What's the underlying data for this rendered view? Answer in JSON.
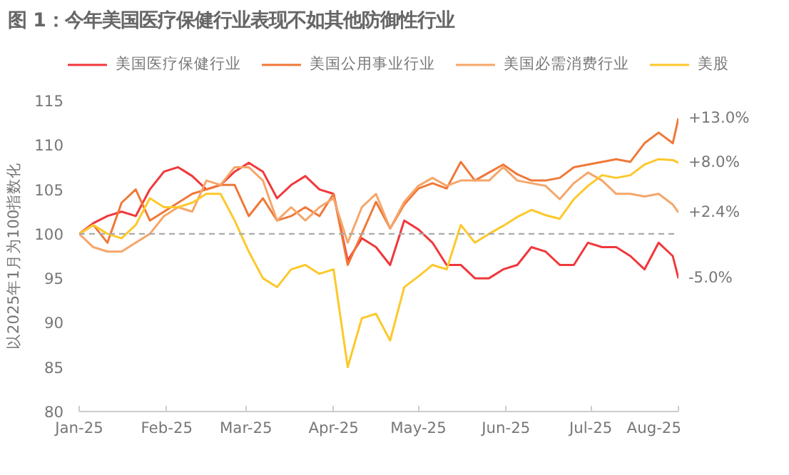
{
  "chart_data": {
    "type": "line",
    "title": "图 1：今年美国医疗保健行业表现不如其他防御性行业",
    "ylabel": "以2025年1月为100指数化",
    "x": [
      "2025-01-01",
      "2025-01-06",
      "2025-01-11",
      "2025-01-16",
      "2025-01-21",
      "2025-01-26",
      "2025-01-31",
      "2025-02-05",
      "2025-02-10",
      "2025-02-15",
      "2025-02-20",
      "2025-02-25",
      "2025-03-02",
      "2025-03-07",
      "2025-03-12",
      "2025-03-17",
      "2025-03-22",
      "2025-03-27",
      "2025-04-01",
      "2025-04-06",
      "2025-04-11",
      "2025-04-16",
      "2025-04-21",
      "2025-04-26",
      "2025-05-01",
      "2025-05-06",
      "2025-05-11",
      "2025-05-16",
      "2025-05-21",
      "2025-05-26",
      "2025-05-31",
      "2025-06-05",
      "2025-06-10",
      "2025-06-15",
      "2025-06-20",
      "2025-06-25",
      "2025-06-30",
      "2025-07-05",
      "2025-07-10",
      "2025-07-15",
      "2025-07-20",
      "2025-07-25",
      "2025-07-30",
      "2025-08-01"
    ],
    "series": [
      {
        "name": "美国医疗保健行业",
        "color": "#f0383c",
        "values": [
          100,
          101.2,
          102,
          102.5,
          102,
          105,
          107,
          107.5,
          106.5,
          105,
          105.5,
          107,
          108,
          107,
          104,
          105.5,
          106.5,
          105,
          104.5,
          97,
          99.5,
          98.5,
          96.5,
          101.5,
          100.5,
          99,
          96.5,
          96.5,
          95,
          95,
          96,
          96.5,
          98.5,
          98,
          96.5,
          96.5,
          99,
          98.5,
          98.5,
          97.5,
          96,
          99,
          97.5,
          95
        ]
      },
      {
        "name": "美国公用事业行业",
        "color": "#f07838",
        "values": [
          100,
          101,
          99,
          103.5,
          105,
          101.5,
          102.5,
          103.5,
          104.5,
          105,
          105.5,
          105.5,
          102,
          104,
          101.5,
          102,
          103,
          102,
          104.5,
          96.5,
          100,
          103.6,
          100.6,
          103.3,
          105.1,
          105.7,
          105.1,
          108.1,
          106,
          106.9,
          107.8,
          106.7,
          106,
          106,
          106.3,
          107.5,
          107.8,
          108.1,
          108.4,
          108.1,
          110.2,
          111.4,
          110.2,
          113
        ]
      },
      {
        "name": "美国必需消费行业",
        "color": "#f5a66a",
        "values": [
          100,
          98.5,
          98,
          98,
          99,
          100,
          102,
          103,
          102.5,
          106,
          105.5,
          107.5,
          107.5,
          106,
          101.5,
          103,
          101.5,
          103,
          104,
          99,
          103,
          104.5,
          100.6,
          103.6,
          105.4,
          106.3,
          105.4,
          106,
          106,
          106,
          107.5,
          106,
          105.7,
          105.4,
          103.9,
          105.7,
          106.9,
          106,
          104.5,
          104.5,
          104.2,
          104.5,
          103.3,
          102.4
        ]
      },
      {
        "name": "美股",
        "color": "#fdc82a",
        "values": [
          100,
          101,
          100,
          99.5,
          101,
          104,
          103,
          103,
          103.5,
          104.5,
          104.5,
          101.5,
          98,
          95,
          94,
          96,
          96.5,
          95.5,
          96,
          85,
          90.5,
          91,
          88,
          94,
          95.2,
          96.5,
          96,
          101,
          99,
          100,
          100.9,
          101.9,
          102.7,
          102.1,
          101.7,
          103.9,
          105.4,
          106.6,
          106.3,
          106.6,
          107.8,
          108.4,
          108.3,
          108
        ]
      }
    ],
    "xlim": [
      "2025-01-01",
      "2025-08-01"
    ],
    "xticks": [
      {
        "value": "2025-01-01",
        "label": "Jan-25"
      },
      {
        "value": "2025-02-01",
        "label": "Feb-25"
      },
      {
        "value": "2025-03-01",
        "label": "Mar-25"
      },
      {
        "value": "2025-04-01",
        "label": "Apr-25"
      },
      {
        "value": "2025-05-01",
        "label": "May-25"
      },
      {
        "value": "2025-06-01",
        "label": "Jun-25"
      },
      {
        "value": "2025-07-01",
        "label": "Jul-25"
      },
      {
        "value": "2025-08-01",
        "label": "Aug-25"
      }
    ],
    "ylim": [
      80,
      115
    ],
    "yticks": [
      80,
      85,
      90,
      95,
      100,
      105,
      110,
      115
    ],
    "ref_lines": [
      {
        "axis": "y",
        "value": 100,
        "color": "#aaaaaa",
        "line_style": "dashed"
      }
    ],
    "annotations": [
      {
        "text": "+13.0%",
        "x": "2025-08-01",
        "y": 113
      },
      {
        "text": "+8.0%",
        "x": "2025-08-01",
        "y": 108
      },
      {
        "text": "+2.4%",
        "x": "2025-08-01",
        "y": 102.4
      },
      {
        "text": "-5.0%",
        "x": "2025-08-01",
        "y": 95
      }
    ],
    "grid": false,
    "legend": "top",
    "line_style": "solid",
    "marker": "none"
  }
}
